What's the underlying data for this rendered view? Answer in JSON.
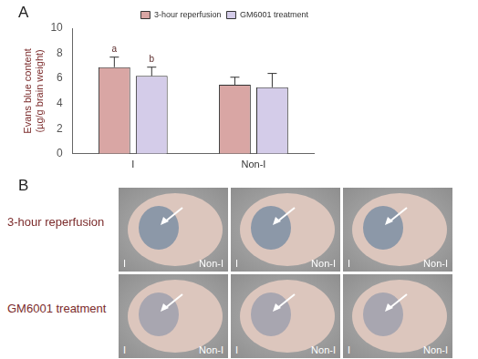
{
  "chart_data": {
    "type": "bar",
    "panel_label": "A",
    "y_label": [
      "Evans blue content",
      "(µg/g brain weight)"
    ],
    "categories": [
      "I",
      "Non-I"
    ],
    "series": [
      {
        "name": "3-hour reperfusion",
        "color": "#d9a6a4",
        "values": [
          6.9,
          5.5
        ],
        "errors": [
          0.8,
          0.6
        ]
      },
      {
        "name": "GM6001 treatment",
        "color": "#d4cce9",
        "values": [
          6.2,
          5.3
        ],
        "errors": [
          0.7,
          1.1
        ]
      }
    ],
    "annotations": [
      {
        "text": "a",
        "category": "I",
        "series": "3-hour reperfusion"
      },
      {
        "text": "b",
        "category": "I",
        "series": "GM6001 treatment"
      }
    ],
    "ylim": [
      0,
      10
    ],
    "yticks": [
      0,
      2,
      4,
      6,
      8,
      10
    ],
    "grid": false,
    "legend": "upper right"
  },
  "image_panel": {
    "panel_label": "B",
    "rows": [
      {
        "label": "3-hour reperfusion",
        "images": [
          {
            "left": "I",
            "right": "Non-I"
          },
          {
            "left": "I",
            "right": "Non-I"
          },
          {
            "left": "I",
            "right": "Non-I"
          }
        ]
      },
      {
        "label": "GM6001 treatment",
        "images": [
          {
            "left": "I",
            "right": "Non-I"
          },
          {
            "left": "I",
            "right": "Non-I"
          },
          {
            "left": "I",
            "right": "Non-I"
          }
        ]
      }
    ]
  }
}
